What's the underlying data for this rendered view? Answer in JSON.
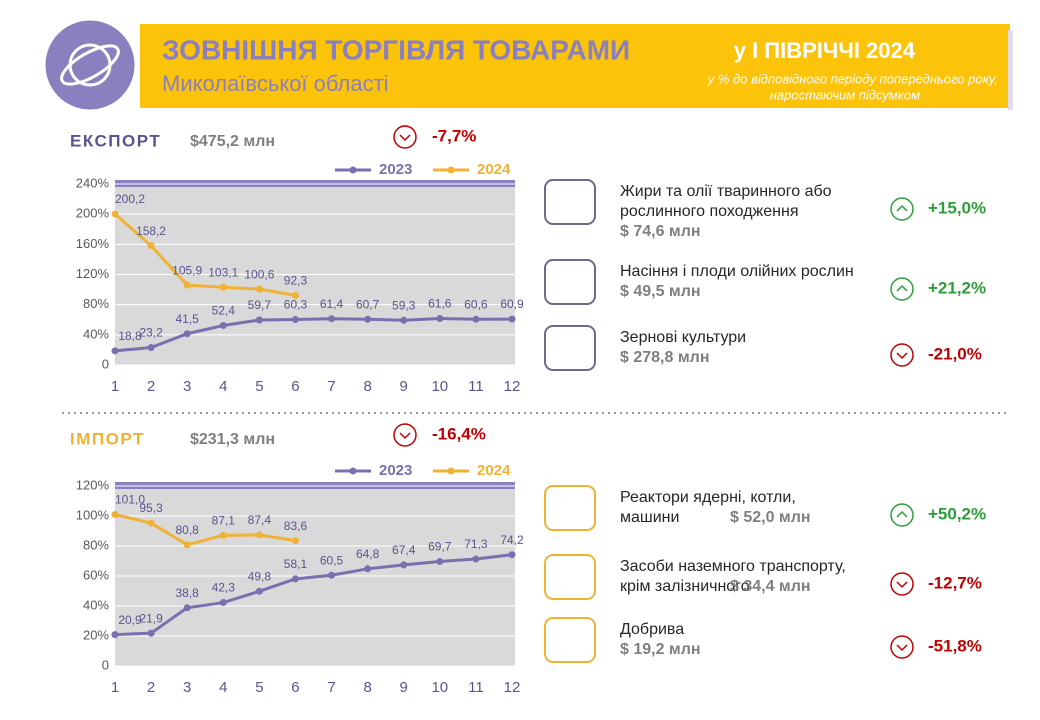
{
  "header": {
    "title": "ЗОВНІШНЯ ТОРГІВЛЯ ТОВАРАМИ",
    "subtitle": "Миколаївської області",
    "period": "у І ПІВРІЧЧІ 2024",
    "note": [
      "у % до відповідного періоду попереднього року,",
      "наростаючим підсумком"
    ]
  },
  "export": {
    "label": "ЕКСПОРТ",
    "amount": "$475,2 млн",
    "change": "-7,7%",
    "trend": "down",
    "items": [
      {
        "name": [
          "Жири та олії тваринного або",
          "рослинного походження"
        ],
        "amount": "$ 74,6 млн",
        "change": "+15,0%",
        "trend": "up"
      },
      {
        "name": [
          "Насіння і плоди олійних рослин"
        ],
        "amount": "$ 49,5 млн",
        "change": "+21,2%",
        "trend": "up"
      },
      {
        "name": [
          "Зернові культури"
        ],
        "amount": "$ 278,8 млн",
        "change": "-21,0%",
        "trend": "down"
      }
    ]
  },
  "import": {
    "label": "ІМПОРТ",
    "amount": "$231,3 млн",
    "change": "-16,4%",
    "trend": "down",
    "items": [
      {
        "name": [
          "Реактори ядерні, котли,",
          "машини"
        ],
        "amount": "$ 52,0 млн",
        "change": "+50,2%",
        "trend": "up"
      },
      {
        "name": [
          "Засоби наземного транспорту,",
          "крім залізничного"
        ],
        "amount": "$ 34,4 млн",
        "change": "-12,7%",
        "trend": "down"
      },
      {
        "name": [
          "Добрива"
        ],
        "amount": "$ 19,2 млн",
        "change": "-51,8%",
        "trend": "down"
      }
    ]
  },
  "chart_data": [
    {
      "type": "line",
      "categories": [
        1,
        2,
        3,
        4,
        5,
        6,
        7,
        8,
        9,
        10,
        11,
        12
      ],
      "ylim": [
        0,
        240
      ],
      "yticks": [
        0,
        {
          "value": 40,
          "label": "40%"
        },
        {
          "value": 80,
          "label": "80%"
        },
        {
          "value": 120,
          "label": "120%"
        },
        {
          "value": 160,
          "label": "160%"
        },
        {
          "value": 200,
          "label": "200%"
        },
        {
          "value": 240,
          "label": "240%"
        }
      ],
      "grid": true,
      "series": [
        {
          "name": "2023",
          "color": "#7b6fb0",
          "values": [
            18.8,
            23.2,
            41.5,
            52.4,
            59.7,
            60.3,
            61.4,
            60.7,
            59.3,
            61.6,
            60.6,
            60.9
          ],
          "value_labels": [
            "18,8",
            "23,2",
            "41,5",
            "52,4",
            "59,7",
            "60,3",
            "61,4",
            "60,7",
            "59,3",
            "61,6",
            "60,6",
            "60,9"
          ]
        },
        {
          "name": "2024",
          "color": "#f0b234",
          "values": [
            200.2,
            158.2,
            105.9,
            103.1,
            100.6,
            92.3,
            null,
            null,
            null,
            null,
            null,
            null
          ],
          "value_labels": [
            "200,2",
            "158,2",
            "105,9",
            "103,1",
            "100,6",
            "92,3",
            null,
            null,
            null,
            null,
            null,
            null
          ]
        }
      ]
    },
    {
      "type": "line",
      "categories": [
        1,
        2,
        3,
        4,
        5,
        6,
        7,
        8,
        9,
        10,
        11,
        12
      ],
      "ylim": [
        0,
        120
      ],
      "yticks": [
        0,
        {
          "value": 20,
          "label": "20%"
        },
        {
          "value": 40,
          "label": "40%"
        },
        {
          "value": 60,
          "label": "60%"
        },
        {
          "value": 80,
          "label": "80%"
        },
        {
          "value": 100,
          "label": "100%"
        },
        {
          "value": 120,
          "label": "120%"
        }
      ],
      "grid": true,
      "series": [
        {
          "name": "2023",
          "color": "#7b6fb0",
          "values": [
            20.9,
            21.9,
            38.8,
            42.3,
            49.8,
            58.1,
            60.5,
            64.8,
            67.4,
            69.7,
            71.3,
            74.2
          ],
          "value_labels": [
            "20,9",
            "21,9",
            "38,8",
            "42,3",
            "49,8",
            "58,1",
            "60,5",
            "64,8",
            "67,4",
            "69,7",
            "71,3",
            "74,2"
          ]
        },
        {
          "name": "2024",
          "color": "#f0b234",
          "values": [
            101.0,
            95.3,
            80.8,
            87.1,
            87.4,
            83.6,
            null,
            null,
            null,
            null,
            null,
            null
          ],
          "value_labels": [
            "101,0",
            "95,3",
            "80,8",
            "87,1",
            "87,4",
            "83,6",
            null,
            null,
            null,
            null,
            null,
            null
          ]
        }
      ]
    }
  ]
}
